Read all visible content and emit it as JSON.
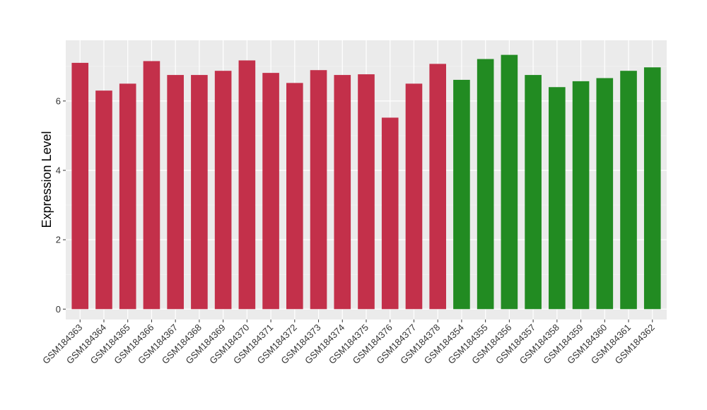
{
  "chart_data": {
    "type": "bar",
    "ylabel": "Expression Level",
    "xlabel": "",
    "ylim": [
      -0.3,
      7.75
    ],
    "yticks": [
      0,
      2,
      4,
      6
    ],
    "grid": true,
    "legend": "none",
    "categories": [
      "GSM184363",
      "GSM184364",
      "GSM184365",
      "GSM184366",
      "GSM184367",
      "GSM184368",
      "GSM184369",
      "GSM184370",
      "GSM184371",
      "GSM184372",
      "GSM184373",
      "GSM184374",
      "GSM184375",
      "GSM184376",
      "GSM184377",
      "GSM184378",
      "GSM184354",
      "GSM184355",
      "GSM184356",
      "GSM184357",
      "GSM184358",
      "GSM184359",
      "GSM184360",
      "GSM184361",
      "GSM184362"
    ],
    "values": [
      7.1,
      6.3,
      6.5,
      7.15,
      6.75,
      6.75,
      6.87,
      7.17,
      6.81,
      6.52,
      6.89,
      6.75,
      6.77,
      5.52,
      6.5,
      7.07,
      6.61,
      7.21,
      7.33,
      6.75,
      6.4,
      6.57,
      6.66,
      6.87,
      6.97
    ],
    "groups": [
      "red",
      "red",
      "red",
      "red",
      "red",
      "red",
      "red",
      "red",
      "red",
      "red",
      "red",
      "red",
      "red",
      "red",
      "red",
      "red",
      "green",
      "green",
      "green",
      "green",
      "green",
      "green",
      "green",
      "green",
      "green"
    ],
    "colors": {
      "red": "#c3304a",
      "green": "#228b22",
      "panel": "#ebebeb",
      "grid_major": "#ffffff",
      "grid_minor": "#f5f5f5"
    }
  }
}
